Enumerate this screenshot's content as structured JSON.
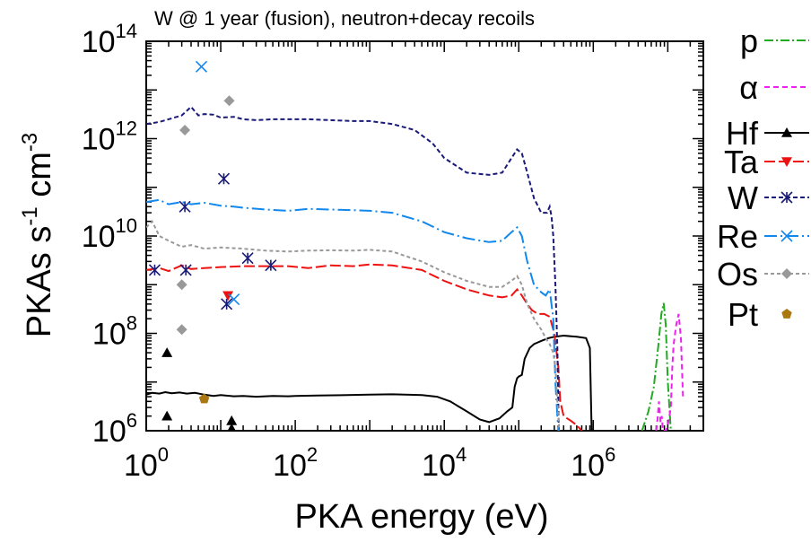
{
  "chart_data": {
    "type": "line",
    "title": "W @ 1 year (fusion), neutron+decay recoils",
    "xlabel": "PKA energy (eV)",
    "ylabel": {
      "base": "PKAs s",
      "exp1": "-1",
      "mid": " cm",
      "exp2": "-3"
    },
    "xscale": "log",
    "yscale": "log",
    "xlim": [
      1,
      30000000
    ],
    "ylim": [
      1000000,
      100000000000000
    ],
    "grid": false,
    "legend_position": "right",
    "x_ticks": [
      {
        "value": 1,
        "base": "10",
        "exp": "0"
      },
      {
        "value": 100,
        "base": "10",
        "exp": "2"
      },
      {
        "value": 10000,
        "base": "10",
        "exp": "4"
      },
      {
        "value": 1000000,
        "base": "10",
        "exp": "6"
      }
    ],
    "y_ticks": [
      {
        "value": 1000000,
        "base": "10",
        "exp": "6"
      },
      {
        "value": 100000000,
        "base": "10",
        "exp": "8"
      },
      {
        "value": 10000000000,
        "base": "10",
        "exp": "10"
      },
      {
        "value": 1000000000000,
        "base": "10",
        "exp": "12"
      },
      {
        "value": 100000000000000,
        "base": "10",
        "exp": "14"
      }
    ],
    "series": [
      {
        "name": "p",
        "label_display": "p",
        "color": "#22aa22",
        "dash": "10,3,2,3",
        "marker": "none",
        "line": [
          [
            4500000,
            1000000
          ],
          [
            5500000,
            2500000
          ],
          [
            6500000,
            8000000
          ],
          [
            7500000,
            60000000
          ],
          [
            8200000,
            250000000
          ],
          [
            8800000,
            420000000
          ],
          [
            9400000,
            150000000
          ],
          [
            10000000,
            10000000
          ],
          [
            11000000,
            1000000
          ]
        ],
        "points": []
      },
      {
        "name": "alpha",
        "label_display": "α",
        "color": "#ee22ee",
        "dash": "6,4",
        "marker": "none",
        "line": [
          [
            7000000,
            1000000
          ],
          [
            7300000,
            1800000
          ],
          [
            7600000,
            4000000
          ],
          [
            8000000,
            1500000
          ],
          [
            8300000,
            2000000
          ],
          [
            8600000,
            1000000
          ],
          [
            9500000,
            1000000
          ],
          [
            10200000,
            1500000
          ],
          [
            11000000,
            3000000
          ],
          [
            11500000,
            20000000
          ],
          [
            12000000,
            60000000
          ],
          [
            13000000,
            150000000
          ],
          [
            14000000,
            250000000
          ],
          [
            15000000,
            80000000
          ],
          [
            16000000,
            5000000
          ]
        ],
        "points": []
      },
      {
        "name": "Hf",
        "label_display": "Hf",
        "color": "#000000",
        "dash": "",
        "marker": "triangle-up",
        "line": [
          [
            1,
            5500000
          ],
          [
            1.2,
            6000000
          ],
          [
            1.5,
            5800000
          ],
          [
            1.8,
            6200000
          ],
          [
            2.2,
            5900000
          ],
          [
            2.8,
            6100000
          ],
          [
            3.5,
            5800000
          ],
          [
            4.5,
            6000000
          ],
          [
            6,
            5500000
          ],
          [
            8,
            5200000
          ],
          [
            10,
            5400000
          ],
          [
            15,
            5100000
          ],
          [
            20,
            5200000
          ],
          [
            30,
            5000000
          ],
          [
            50,
            5200000
          ],
          [
            80,
            5100000
          ],
          [
            100,
            5200000
          ],
          [
            200,
            5300000
          ],
          [
            500,
            5400000
          ],
          [
            1000,
            5500000
          ],
          [
            2000,
            5600000
          ],
          [
            5000,
            5400000
          ],
          [
            8000,
            5000000
          ],
          [
            12000,
            4000000
          ],
          [
            20000,
            2500000
          ],
          [
            30000,
            1700000
          ],
          [
            40000,
            1500000
          ],
          [
            55000,
            1800000
          ],
          [
            70000,
            2500000
          ],
          [
            82000,
            3000000
          ],
          [
            88000,
            8000000
          ],
          [
            95000,
            12000000
          ],
          [
            100000,
            13000000
          ],
          [
            110000,
            14000000
          ],
          [
            120000,
            30000000
          ],
          [
            140000,
            50000000
          ],
          [
            160000,
            60000000
          ],
          [
            200000,
            70000000
          ],
          [
            250000,
            80000000
          ],
          [
            300000,
            85000000
          ],
          [
            400000,
            90000000
          ],
          [
            600000,
            85000000
          ],
          [
            800000,
            80000000
          ],
          [
            900000,
            50000000
          ],
          [
            950000,
            1000000
          ]
        ],
        "points": [
          [
            1.9,
            2000000
          ],
          [
            1.9,
            40000000
          ],
          [
            14,
            1600000
          ],
          [
            14,
            1100000
          ]
        ]
      },
      {
        "name": "Ta",
        "label_display": "Ta",
        "color": "#ee1111",
        "dash": "12,4",
        "marker": "triangle-down",
        "line": [
          [
            1,
            2000000000
          ],
          [
            1.5,
            2200000000
          ],
          [
            2,
            1900000000
          ],
          [
            3,
            2500000000
          ],
          [
            4,
            2100000000
          ],
          [
            6,
            2200000000
          ],
          [
            10,
            2300000000
          ],
          [
            20,
            2400000000
          ],
          [
            40,
            2400000000
          ],
          [
            80,
            2400000000
          ],
          [
            150,
            2200000000
          ],
          [
            300,
            2500000000
          ],
          [
            600,
            2400000000
          ],
          [
            1000,
            2600000000
          ],
          [
            2000,
            2500000000
          ],
          [
            5000,
            2000000000
          ],
          [
            10000,
            1200000000
          ],
          [
            20000,
            800000000
          ],
          [
            40000,
            600000000
          ],
          [
            60000,
            550000000
          ],
          [
            80000,
            600000000
          ],
          [
            95000,
            800000000
          ],
          [
            110000,
            600000000
          ],
          [
            130000,
            400000000
          ],
          [
            150000,
            300000000
          ],
          [
            180000,
            250000000
          ],
          [
            220000,
            250000000
          ],
          [
            260000,
            220000000
          ],
          [
            300000,
            100000000
          ],
          [
            340000,
            20000000
          ],
          [
            360000,
            4000000
          ],
          [
            400000,
            2000000
          ],
          [
            500000,
            1600000
          ],
          [
            600000,
            1300000
          ],
          [
            700000,
            1000000
          ]
        ],
        "points": [
          [
            12.5,
            600000000
          ]
        ]
      },
      {
        "name": "W",
        "label_display": "W",
        "color": "#1a1a77",
        "dash": "5,3",
        "marker": "asterisk",
        "line": [
          [
            1,
            2000000000000
          ],
          [
            1.5,
            2200000000000
          ],
          [
            2,
            2500000000000
          ],
          [
            3,
            3000000000000
          ],
          [
            4,
            4500000000000
          ],
          [
            5,
            3000000000000
          ],
          [
            6,
            3200000000000
          ],
          [
            8,
            3100000000000
          ],
          [
            10,
            2700000000000
          ],
          [
            15,
            2800000000000
          ],
          [
            20,
            2500000000000
          ],
          [
            30,
            2400000000000
          ],
          [
            50,
            2500000000000
          ],
          [
            80,
            2500000000000
          ],
          [
            150,
            2500000000000
          ],
          [
            300,
            2400000000000
          ],
          [
            600,
            2300000000000
          ],
          [
            1000,
            2300000000000
          ],
          [
            2000,
            2000000000000
          ],
          [
            4000,
            1500000000000
          ],
          [
            7000,
            800000000000
          ],
          [
            10000,
            400000000000
          ],
          [
            20000,
            200000000000
          ],
          [
            40000,
            180000000000
          ],
          [
            60000,
            200000000000
          ],
          [
            80000,
            400000000000
          ],
          [
            95000,
            600000000000
          ],
          [
            110000,
            500000000000
          ],
          [
            130000,
            200000000000
          ],
          [
            160000,
            60000000000
          ],
          [
            200000,
            30000000000
          ],
          [
            240000,
            30000000000
          ],
          [
            260000,
            40000000000
          ],
          [
            275000,
            25000000000
          ],
          [
            290000,
            10000000000
          ],
          [
            310000,
            1000000000
          ],
          [
            330000,
            50000000
          ],
          [
            340000,
            3000000
          ],
          [
            345000,
            1000000
          ]
        ],
        "points": [
          [
            1.3,
            2000000000
          ],
          [
            3.3,
            40000000000
          ],
          [
            3.4,
            2000000000
          ],
          [
            11,
            150000000000
          ],
          [
            12,
            400000000
          ],
          [
            23,
            3500000000
          ],
          [
            47,
            2500000000
          ]
        ]
      },
      {
        "name": "Re",
        "label_display": "Re",
        "color": "#1188ee",
        "dash": "14,4,2,4",
        "marker": "x",
        "line": [
          [
            1,
            50000000000
          ],
          [
            1.5,
            55000000000
          ],
          [
            2,
            45000000000
          ],
          [
            3,
            50000000000
          ],
          [
            4,
            45000000000
          ],
          [
            6,
            48000000000
          ],
          [
            10,
            42000000000
          ],
          [
            15,
            40000000000
          ],
          [
            20,
            38000000000
          ],
          [
            40,
            35000000000
          ],
          [
            80,
            33000000000
          ],
          [
            150,
            36000000000
          ],
          [
            300,
            35000000000
          ],
          [
            600,
            34000000000
          ],
          [
            1000,
            33000000000
          ],
          [
            2000,
            30000000000
          ],
          [
            5000,
            20000000000
          ],
          [
            10000,
            12000000000
          ],
          [
            20000,
            9000000000
          ],
          [
            40000,
            7500000000
          ],
          [
            60000,
            8000000000
          ],
          [
            80000,
            12000000000
          ],
          [
            95000,
            15000000000
          ],
          [
            110000,
            10000000000
          ],
          [
            130000,
            3000000000
          ],
          [
            160000,
            1000000000
          ],
          [
            200000,
            700000000
          ],
          [
            230000,
            600000000
          ],
          [
            260000,
            800000000
          ],
          [
            290000,
            200000000
          ],
          [
            310000,
            10000000
          ],
          [
            330000,
            2000000
          ],
          [
            340000,
            1000000
          ]
        ],
        "points": [
          [
            5.5,
            30000000000000
          ],
          [
            15,
            500000000
          ]
        ]
      },
      {
        "name": "Os",
        "label_display": "Os",
        "color": "#999999",
        "dash": "4,3",
        "marker": "diamond",
        "line": [
          [
            1,
            15000000000
          ],
          [
            1.2,
            20000000000
          ],
          [
            1.5,
            10000000000
          ],
          [
            2,
            8000000000
          ],
          [
            3,
            6000000000
          ],
          [
            4,
            6500000000
          ],
          [
            6,
            5500000000
          ],
          [
            10,
            5800000000
          ],
          [
            20,
            5500000000
          ],
          [
            40,
            5000000000
          ],
          [
            80,
            4800000000
          ],
          [
            150,
            5000000000
          ],
          [
            300,
            5100000000
          ],
          [
            600,
            5000000000
          ],
          [
            1000,
            5200000000
          ],
          [
            2000,
            4800000000
          ],
          [
            5000,
            3000000000
          ],
          [
            10000,
            1800000000
          ],
          [
            20000,
            1200000000
          ],
          [
            40000,
            900000000
          ],
          [
            60000,
            900000000
          ],
          [
            80000,
            1200000000
          ],
          [
            95000,
            1500000000
          ],
          [
            110000,
            1000000000
          ],
          [
            130000,
            400000000
          ],
          [
            160000,
            200000000
          ],
          [
            200000,
            120000000
          ],
          [
            230000,
            80000000
          ],
          [
            260000,
            60000000
          ],
          [
            290000,
            40000000
          ],
          [
            310000,
            20000000
          ],
          [
            330000,
            4000000
          ],
          [
            350000,
            1000000
          ]
        ],
        "points": [
          [
            3.3,
            1500000000000
          ],
          [
            13,
            6000000000000
          ],
          [
            3.0,
            1000000000
          ],
          [
            3.0,
            120000000
          ]
        ]
      },
      {
        "name": "Pt",
        "label_display": "Pt",
        "color": "#aa7711",
        "dash": "",
        "marker": "pentagon",
        "line": [],
        "points": [
          [
            6,
            4500000
          ]
        ]
      }
    ]
  }
}
